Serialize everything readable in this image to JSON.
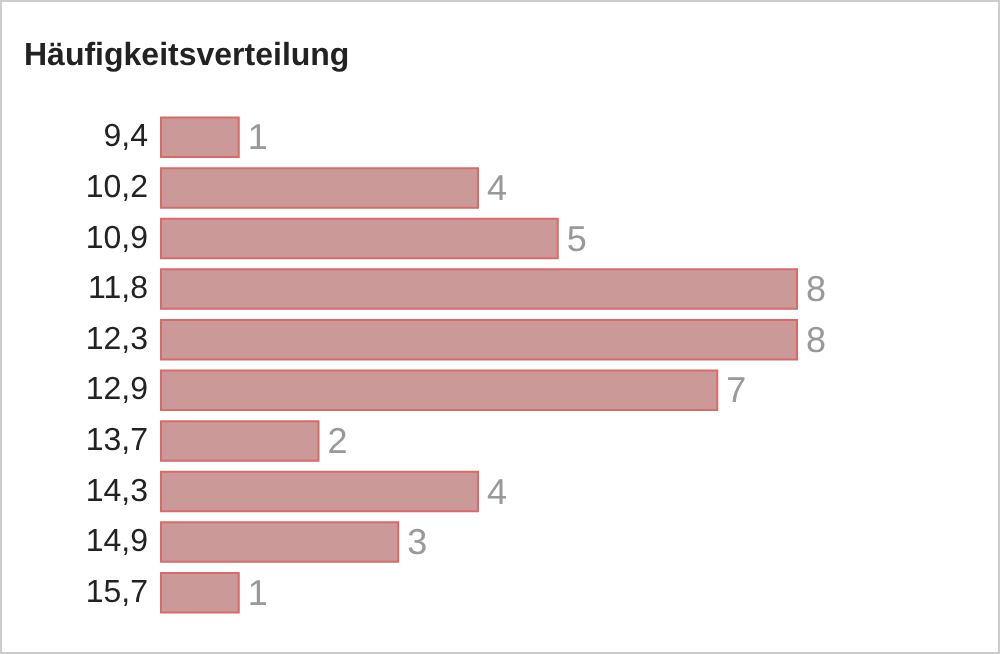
{
  "chart_data": {
    "type": "bar",
    "title": "Häufigkeitsverteilung",
    "orientation": "horizontal",
    "categories": [
      "9,4",
      "10,2",
      "10,9",
      "11,8",
      "12,3",
      "12,9",
      "13,7",
      "14,3",
      "14,9",
      "15,7"
    ],
    "values": [
      1,
      4,
      5,
      8,
      8,
      7,
      2,
      4,
      3,
      1
    ],
    "color": "#cc9999",
    "data_labels": true
  }
}
